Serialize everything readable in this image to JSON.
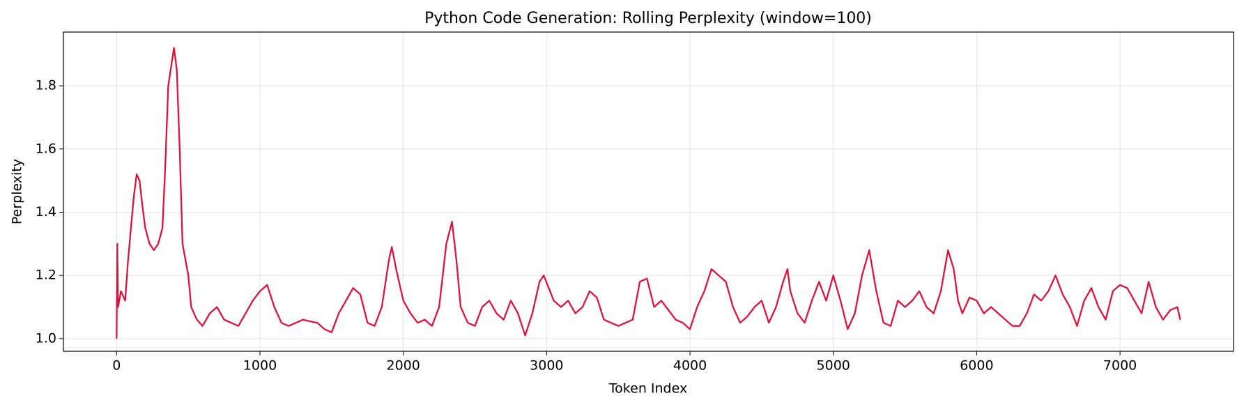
{
  "chart_data": {
    "type": "line",
    "title": "Python Code Generation: Rolling Perplexity (window=100)",
    "x_label": "Token Index",
    "y_label": "Perplexity",
    "xlim": [
      -371,
      7792
    ],
    "ylim": [
      0.96,
      1.97
    ],
    "xticks": [
      0,
      1000,
      2000,
      3000,
      4000,
      5000,
      6000,
      7000
    ],
    "yticks": [
      {
        "value": 1.0,
        "label": "1.0"
      },
      1.2,
      1.4,
      1.6,
      1.8
    ],
    "grid": true,
    "series": [
      {
        "name": "Rolling Perplexity",
        "color": "#dc143c",
        "x": [
          0,
          5,
          10,
          30,
          60,
          80,
          100,
          120,
          140,
          160,
          180,
          200,
          230,
          260,
          290,
          320,
          340,
          360,
          380,
          400,
          420,
          440,
          460,
          500,
          520,
          560,
          600,
          650,
          700,
          750,
          800,
          850,
          900,
          950,
          1000,
          1050,
          1100,
          1150,
          1200,
          1300,
          1400,
          1450,
          1500,
          1550,
          1600,
          1650,
          1700,
          1750,
          1800,
          1850,
          1900,
          1920,
          1950,
          2000,
          2050,
          2100,
          2150,
          2200,
          2250,
          2300,
          2340,
          2370,
          2400,
          2450,
          2500,
          2550,
          2600,
          2650,
          2700,
          2750,
          2800,
          2850,
          2900,
          2950,
          2980,
          3050,
          3100,
          3150,
          3200,
          3250,
          3300,
          3350,
          3400,
          3450,
          3500,
          3550,
          3600,
          3650,
          3700,
          3750,
          3800,
          3850,
          3900,
          3950,
          4000,
          4050,
          4100,
          4150,
          4200,
          4250,
          4300,
          4350,
          4400,
          4450,
          4500,
          4550,
          4600,
          4650,
          4680,
          4700,
          4750,
          4800,
          4850,
          4900,
          4950,
          5000,
          5050,
          5100,
          5150,
          5200,
          5250,
          5300,
          5350,
          5400,
          5450,
          5500,
          5550,
          5600,
          5650,
          5700,
          5750,
          5800,
          5840,
          5870,
          5900,
          5950,
          6000,
          6050,
          6100,
          6150,
          6200,
          6250,
          6300,
          6350,
          6400,
          6450,
          6500,
          6550,
          6600,
          6650,
          6700,
          6750,
          6800,
          6850,
          6900,
          6950,
          7000,
          7050,
          7100,
          7150,
          7200,
          7250,
          7300,
          7350,
          7400,
          7420
        ],
        "values": [
          1.0,
          1.3,
          1.1,
          1.15,
          1.12,
          1.25,
          1.35,
          1.45,
          1.52,
          1.5,
          1.42,
          1.35,
          1.3,
          1.28,
          1.3,
          1.35,
          1.55,
          1.8,
          1.86,
          1.92,
          1.85,
          1.6,
          1.3,
          1.2,
          1.1,
          1.06,
          1.04,
          1.08,
          1.1,
          1.06,
          1.05,
          1.04,
          1.08,
          1.12,
          1.15,
          1.17,
          1.1,
          1.05,
          1.04,
          1.06,
          1.05,
          1.03,
          1.02,
          1.08,
          1.12,
          1.16,
          1.14,
          1.05,
          1.04,
          1.1,
          1.25,
          1.29,
          1.22,
          1.12,
          1.08,
          1.05,
          1.06,
          1.04,
          1.1,
          1.3,
          1.37,
          1.25,
          1.1,
          1.05,
          1.04,
          1.1,
          1.12,
          1.08,
          1.06,
          1.12,
          1.08,
          1.01,
          1.08,
          1.18,
          1.2,
          1.12,
          1.1,
          1.12,
          1.08,
          1.1,
          1.15,
          1.13,
          1.06,
          1.05,
          1.04,
          1.05,
          1.06,
          1.18,
          1.19,
          1.1,
          1.12,
          1.09,
          1.06,
          1.05,
          1.03,
          1.1,
          1.15,
          1.22,
          1.2,
          1.18,
          1.1,
          1.05,
          1.07,
          1.1,
          1.12,
          1.05,
          1.1,
          1.18,
          1.22,
          1.15,
          1.08,
          1.05,
          1.12,
          1.18,
          1.12,
          1.2,
          1.12,
          1.03,
          1.08,
          1.2,
          1.28,
          1.15,
          1.05,
          1.04,
          1.12,
          1.1,
          1.12,
          1.15,
          1.1,
          1.08,
          1.15,
          1.28,
          1.22,
          1.12,
          1.08,
          1.13,
          1.12,
          1.08,
          1.1,
          1.08,
          1.06,
          1.04,
          1.04,
          1.08,
          1.14,
          1.12,
          1.15,
          1.2,
          1.14,
          1.1,
          1.04,
          1.12,
          1.16,
          1.1,
          1.06,
          1.15,
          1.17,
          1.16,
          1.12,
          1.08,
          1.18,
          1.1,
          1.06,
          1.09,
          1.1,
          1.06
        ]
      }
    ]
  }
}
